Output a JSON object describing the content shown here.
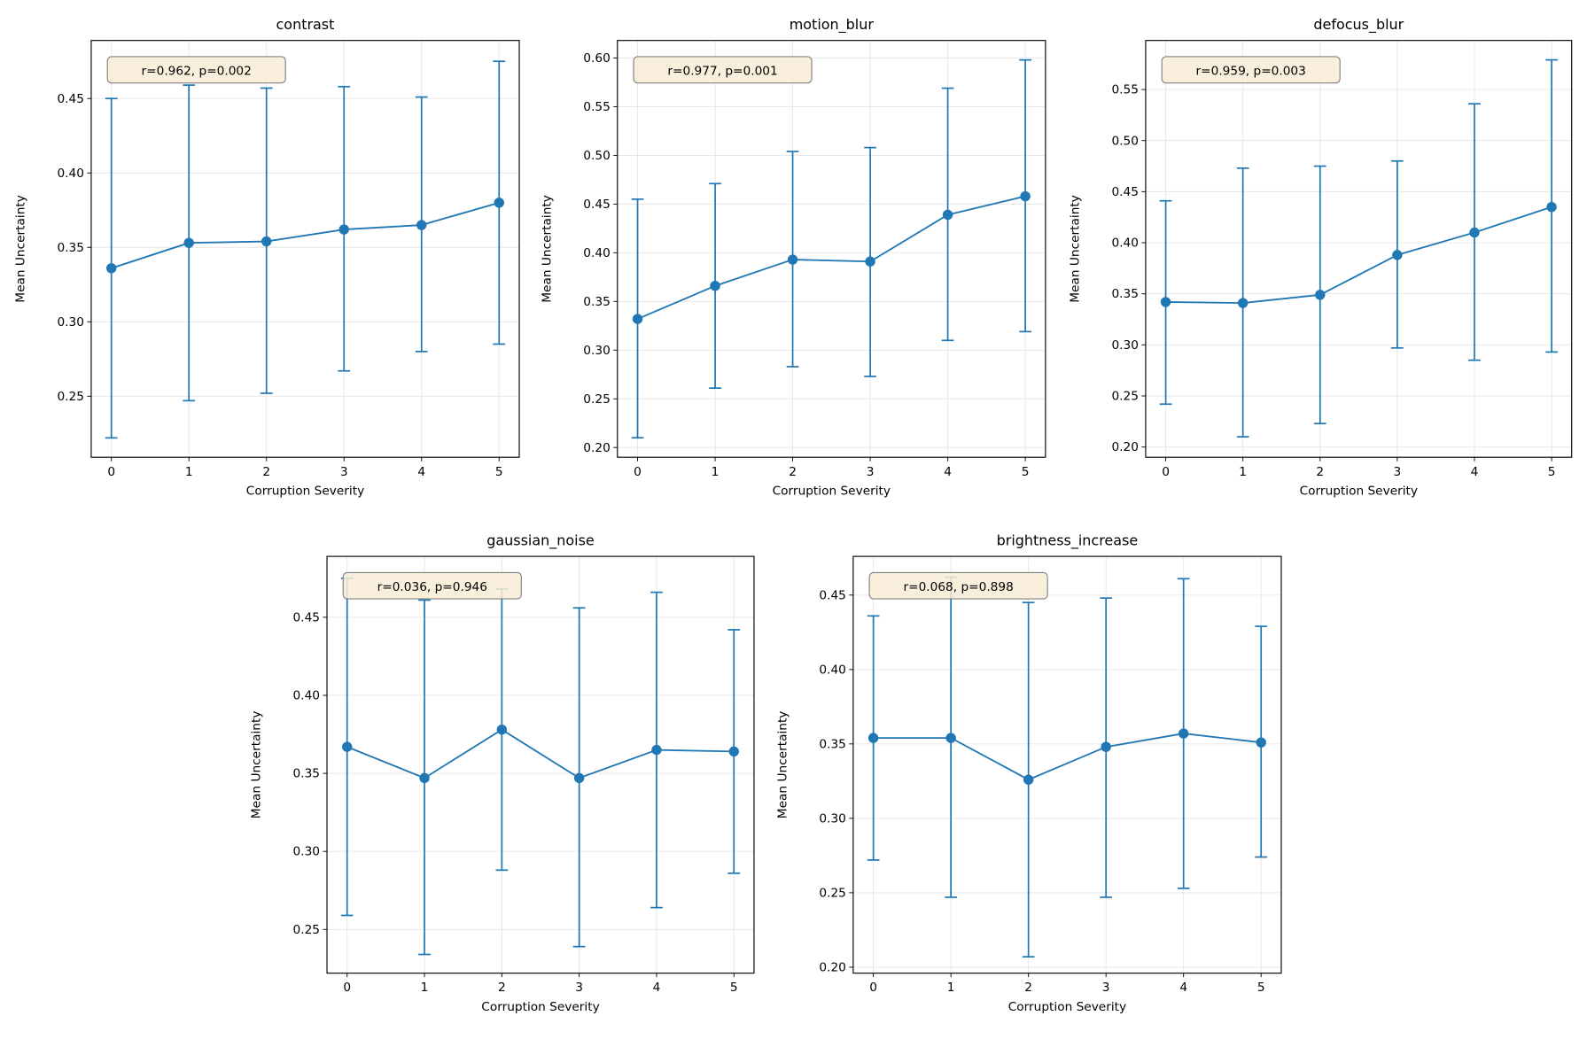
{
  "chart_data": [
    {
      "type": "line",
      "errorbars": true,
      "title": "contrast",
      "xlabel": "Corruption Severity",
      "ylabel": "Mean Uncertainty",
      "x": [
        0,
        1,
        2,
        3,
        4,
        5
      ],
      "y": [
        0.336,
        0.353,
        0.354,
        0.362,
        0.365,
        0.38
      ],
      "err_upper": [
        0.45,
        0.459,
        0.457,
        0.458,
        0.451,
        0.475
      ],
      "err_lower": [
        0.222,
        0.247,
        0.252,
        0.267,
        0.28,
        0.285
      ],
      "ylim": [
        0.209,
        0.489
      ],
      "xlim": [
        -0.26,
        5.26
      ],
      "yticks": [
        "0.25",
        "0.30",
        "0.35",
        "0.40",
        "0.45"
      ],
      "xticks": [
        "0",
        "1",
        "2",
        "3",
        "4",
        "5"
      ],
      "annotation": "r=0.962, p=0.002",
      "grid": true
    },
    {
      "type": "line",
      "errorbars": true,
      "title": "motion_blur",
      "xlabel": "Corruption Severity",
      "ylabel": "Mean Uncertainty",
      "x": [
        0,
        1,
        2,
        3,
        4,
        5
      ],
      "y": [
        0.332,
        0.366,
        0.393,
        0.391,
        0.439,
        0.458
      ],
      "err_upper": [
        0.455,
        0.471,
        0.504,
        0.508,
        0.569,
        0.598
      ],
      "err_lower": [
        0.21,
        0.261,
        0.283,
        0.273,
        0.31,
        0.319
      ],
      "ylim": [
        0.19,
        0.618
      ],
      "xlim": [
        -0.26,
        5.26
      ],
      "yticks": [
        "0.20",
        "0.25",
        "0.30",
        "0.35",
        "0.40",
        "0.45",
        "0.50",
        "0.55",
        "0.60"
      ],
      "xticks": [
        "0",
        "1",
        "2",
        "3",
        "4",
        "5"
      ],
      "annotation": "r=0.977, p=0.001",
      "grid": true
    },
    {
      "type": "line",
      "errorbars": true,
      "title": "defocus_blur",
      "xlabel": "Corruption Severity",
      "ylabel": "Mean Uncertainty",
      "x": [
        0,
        1,
        2,
        3,
        4,
        5
      ],
      "y": [
        0.342,
        0.341,
        0.349,
        0.388,
        0.41,
        0.435
      ],
      "err_upper": [
        0.441,
        0.473,
        0.475,
        0.48,
        0.536,
        0.579
      ],
      "err_lower": [
        0.242,
        0.21,
        0.223,
        0.297,
        0.285,
        0.293
      ],
      "ylim": [
        0.19,
        0.598
      ],
      "xlim": [
        -0.26,
        5.26
      ],
      "yticks": [
        "0.20",
        "0.25",
        "0.30",
        "0.35",
        "0.40",
        "0.45",
        "0.50",
        "0.55"
      ],
      "xticks": [
        "0",
        "1",
        "2",
        "3",
        "4",
        "5"
      ],
      "annotation": "r=0.959, p=0.003",
      "grid": true
    },
    {
      "type": "line",
      "errorbars": true,
      "title": "gaussian_noise",
      "xlabel": "Corruption Severity",
      "ylabel": "Mean Uncertainty",
      "x": [
        0,
        1,
        2,
        3,
        4,
        5
      ],
      "y": [
        0.367,
        0.347,
        0.378,
        0.347,
        0.365,
        0.364
      ],
      "err_upper": [
        0.475,
        0.461,
        0.468,
        0.456,
        0.466,
        0.442
      ],
      "err_lower": [
        0.259,
        0.234,
        0.288,
        0.239,
        0.264,
        0.286
      ],
      "ylim": [
        0.222,
        0.489
      ],
      "xlim": [
        -0.26,
        5.26
      ],
      "yticks": [
        "0.25",
        "0.30",
        "0.35",
        "0.40",
        "0.45"
      ],
      "xticks": [
        "0",
        "1",
        "2",
        "3",
        "4",
        "5"
      ],
      "annotation": "r=0.036, p=0.946",
      "grid": true
    },
    {
      "type": "line",
      "errorbars": true,
      "title": "brightness_increase",
      "xlabel": "Corruption Severity",
      "ylabel": "Mean Uncertainty",
      "x": [
        0,
        1,
        2,
        3,
        4,
        5
      ],
      "y": [
        0.354,
        0.354,
        0.326,
        0.348,
        0.357,
        0.351
      ],
      "err_upper": [
        0.436,
        0.462,
        0.445,
        0.448,
        0.461,
        0.429
      ],
      "err_lower": [
        0.272,
        0.247,
        0.207,
        0.247,
        0.253,
        0.274
      ],
      "ylim": [
        0.196,
        0.476
      ],
      "xlim": [
        -0.26,
        5.26
      ],
      "yticks": [
        "0.20",
        "0.25",
        "0.30",
        "0.35",
        "0.40",
        "0.45"
      ],
      "xticks": [
        "0",
        "1",
        "2",
        "3",
        "4",
        "5"
      ],
      "annotation": "r=0.068, p=0.898",
      "grid": true
    }
  ],
  "colors": {
    "series": "#1f77b4",
    "grid": "#e6e6e6",
    "annotation_fill": "#f8ecd6",
    "annotation_border": "#808080"
  }
}
